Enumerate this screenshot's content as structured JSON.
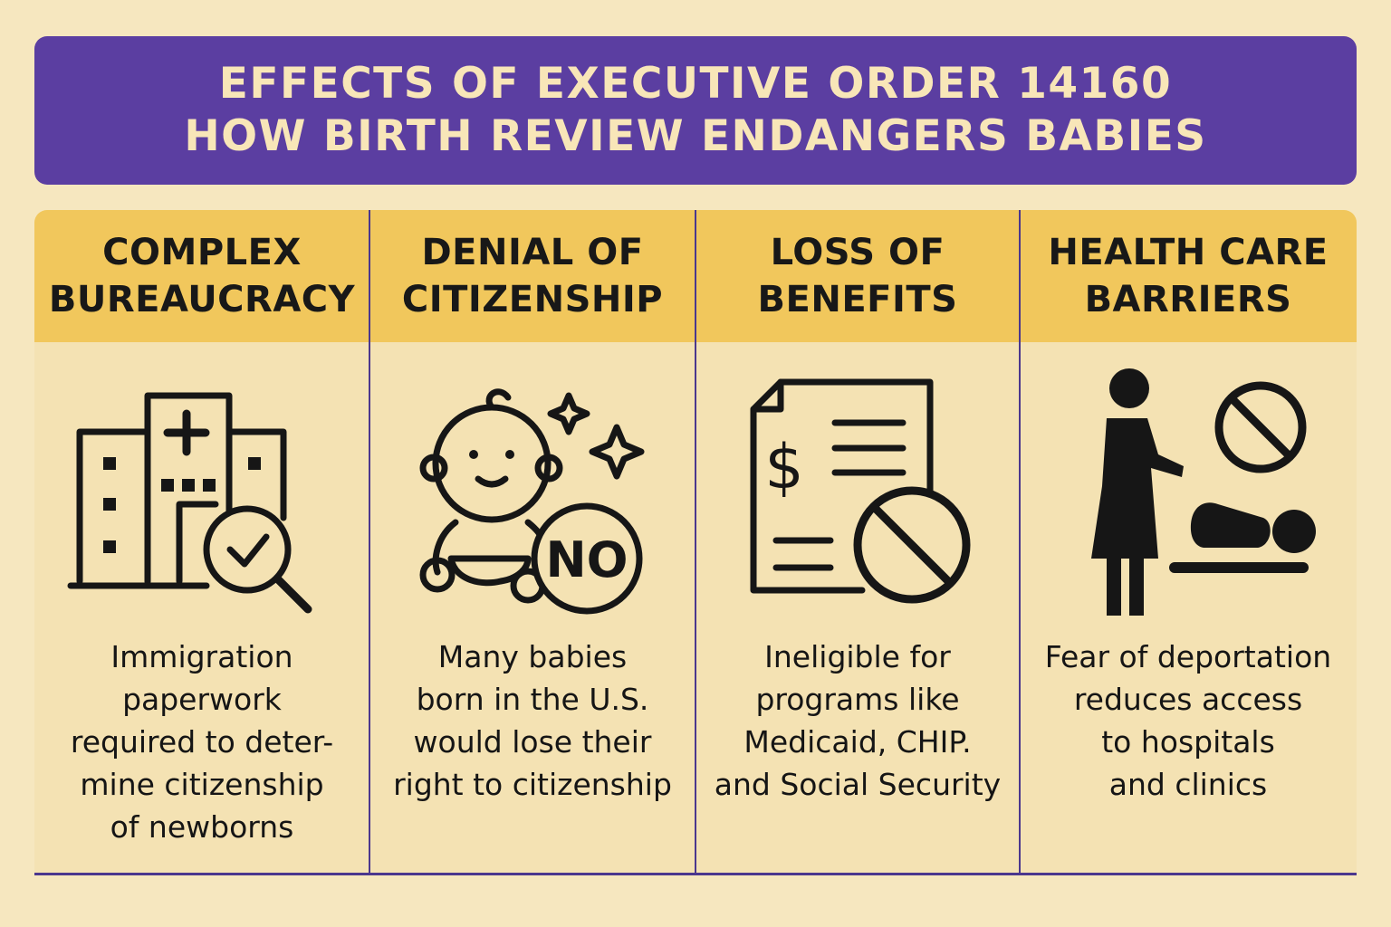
{
  "banner": {
    "line1": "EFFECTS OF EXECUTIVE ORDER 14160",
    "line2": "HOW BIRTH REVIEW ENDANGERS BABIES",
    "background": "#5b3ea1",
    "text_color": "#f8e6b8"
  },
  "columns": [
    {
      "heading": [
        "COMPLEX",
        "BUREAUCRACY"
      ],
      "icon": "building-magnifier-check-icon",
      "text": [
        "Immigration",
        "paperwork",
        "required to deter-",
        "mine citizenship",
        "of newborns"
      ]
    },
    {
      "heading": [
        "DENIAL OF",
        "CITIZENSHIP"
      ],
      "icon": "baby-no-icon",
      "icon_label": "NO",
      "text": [
        "Many babies",
        "born in the U.S.",
        "would lose their",
        "right to citizenship"
      ]
    },
    {
      "heading": [
        "LOSS OF",
        "BENEFITS"
      ],
      "icon": "benefits-document-prohibited-icon",
      "icon_label": "$",
      "text": [
        "Ineligible for",
        "programs like",
        "Medicaid, CHIP.",
        "and Social Security"
      ]
    },
    {
      "heading": [
        "HEALTH CARE",
        "BARRIERS"
      ],
      "icon": "parent-baby-prohibited-icon",
      "text": [
        "Fear of deportation",
        "reduces access",
        "to hospitals",
        "and clinics"
      ]
    }
  ],
  "colors": {
    "page_background": "#f6e7bf",
    "header_band": "#f1c75c",
    "divider": "#4b378e"
  }
}
